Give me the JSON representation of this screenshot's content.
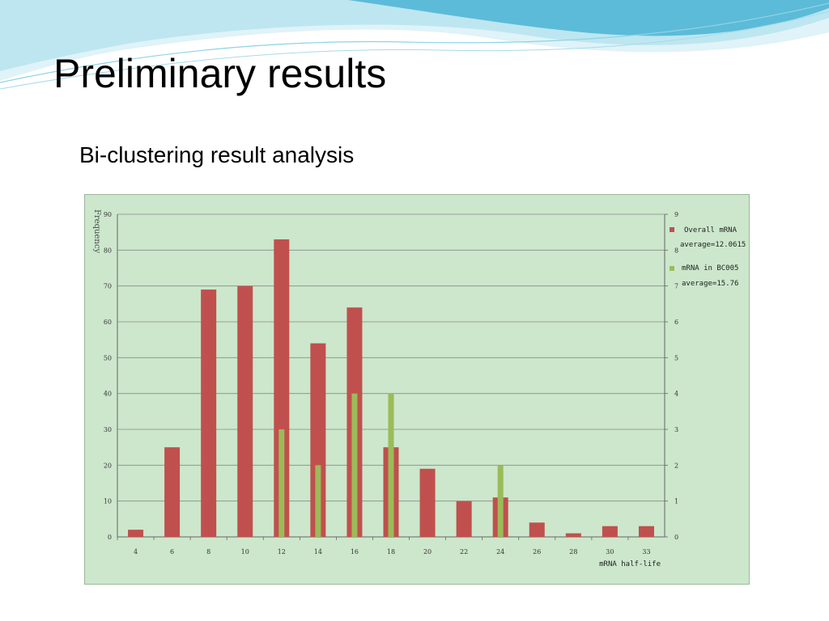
{
  "slide": {
    "title": "Preliminary results",
    "subtitle": "Bi-clustering result analysis"
  },
  "colors": {
    "overall_bar": "#c0504d",
    "bc005_bar": "#9bbb59",
    "chart_bg": "#cce7cc",
    "gridline": "#8a8a8a",
    "wave_light": "#bde6f0",
    "wave_dark": "#4bb3d3"
  },
  "chart_data": {
    "type": "bar",
    "categories": [
      "4",
      "6",
      "8",
      "10",
      "12",
      "14",
      "16",
      "18",
      "20",
      "22",
      "24",
      "26",
      "28",
      "30",
      "33"
    ],
    "ylabel": "Frequency",
    "xlabel": "mRNA half-life",
    "ylim": [
      0,
      90
    ],
    "yticks": [
      "0",
      "10",
      "20",
      "30",
      "40",
      "50",
      "60",
      "70",
      "80",
      "90"
    ],
    "y2lim": [
      0,
      9
    ],
    "y2ticks": [
      "0",
      "1",
      "2",
      "3",
      "4",
      "5",
      "6",
      "7",
      "8",
      "9"
    ],
    "grid": true,
    "legend_position": "top-right",
    "series": [
      {
        "name": "Overall mRNA",
        "stat": "average=12.0615",
        "axis": "left",
        "values": [
          2,
          25,
          69,
          70,
          83,
          54,
          64,
          25,
          19,
          10,
          11,
          4,
          1,
          3,
          3
        ]
      },
      {
        "name": "mRNA in BC005",
        "stat": "average=15.76",
        "axis": "right",
        "values": [
          0,
          0,
          0,
          0,
          3,
          2,
          4,
          4,
          0,
          0,
          2,
          0,
          0,
          0,
          0
        ]
      }
    ]
  }
}
